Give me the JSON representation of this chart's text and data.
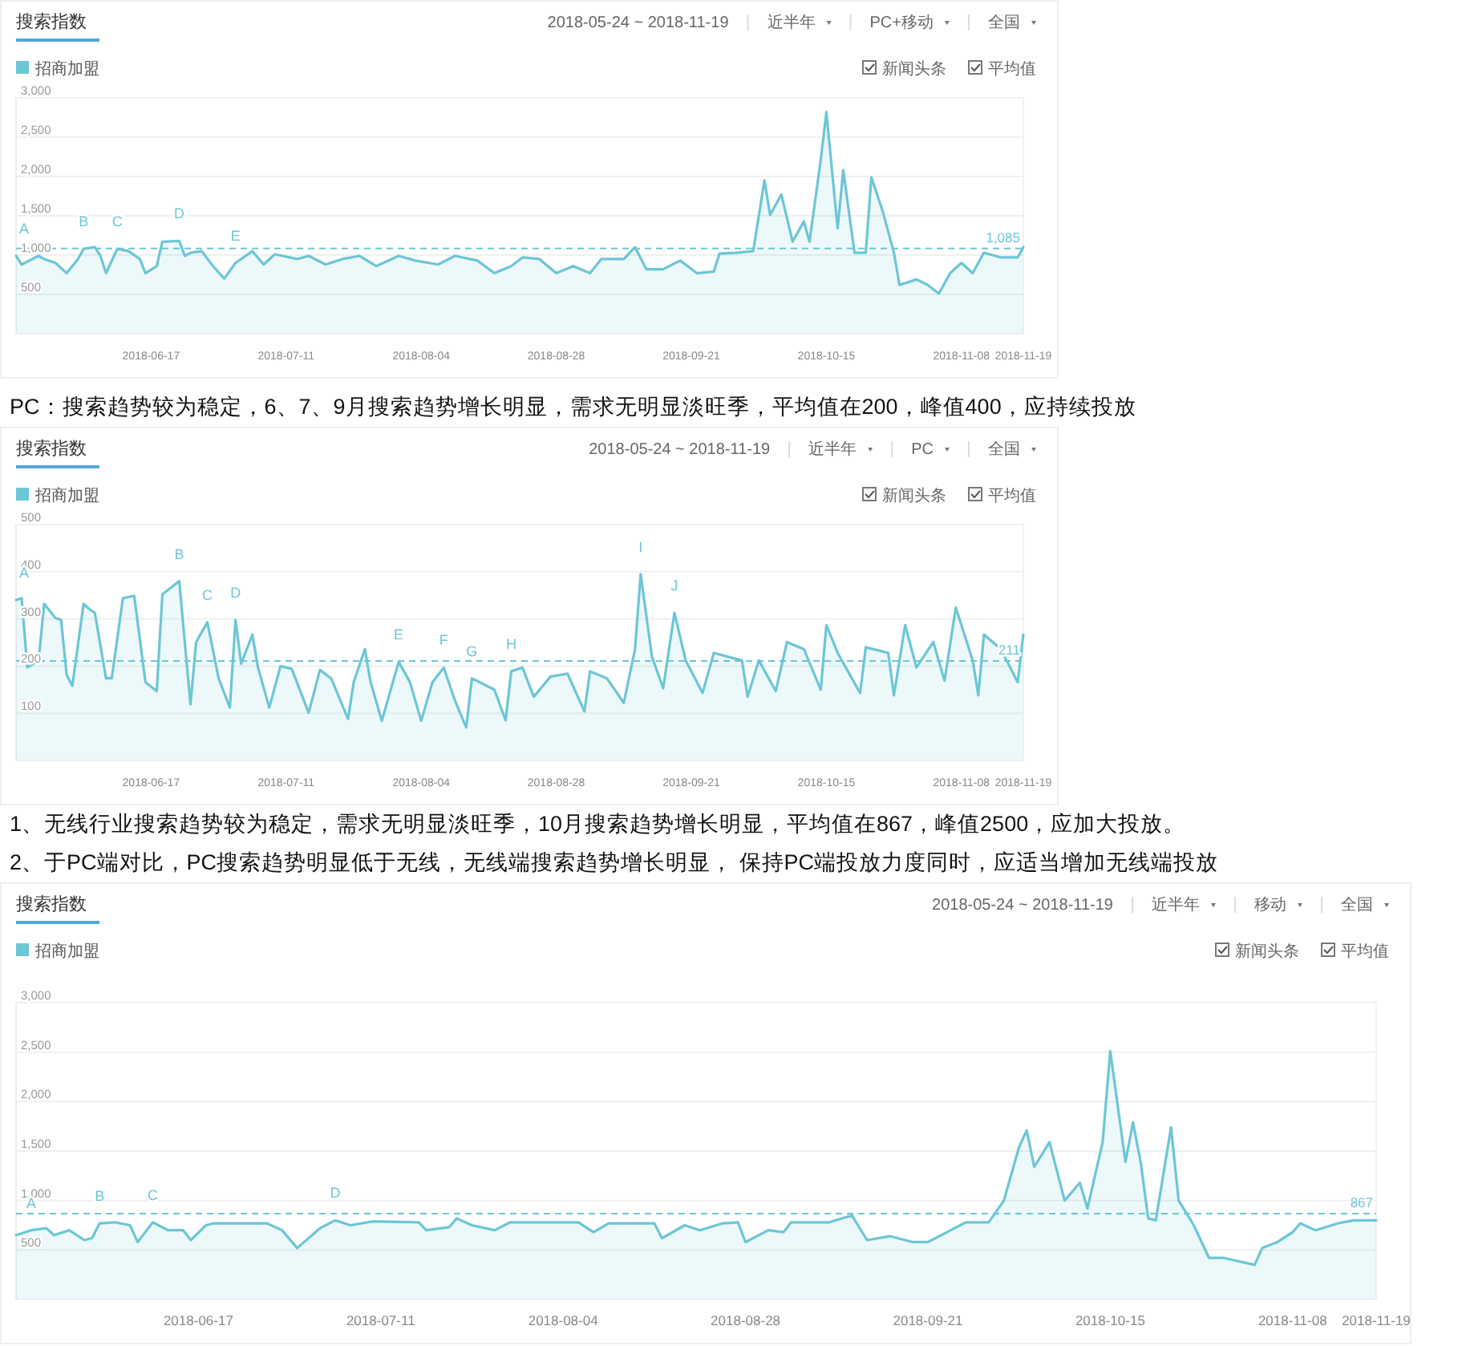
{
  "chart_data": [
    {
      "type": "area",
      "title": "搜索指数",
      "subtitle": "2018-05-24 ~ 2018-11-19",
      "legend": "top left",
      "grid": "y",
      "annotations": [
        "近半年",
        "PC+移动",
        "全国",
        "新闻头条",
        "平均值",
        {
          "text": "A",
          "x": "2018-05-24",
          "y": 990
        },
        {
          "text": "B",
          "x": "2018-06-05",
          "y": 1080
        },
        {
          "text": "C",
          "x": "2018-06-11",
          "y": 1080
        },
        {
          "text": "D",
          "x": "2018-06-22",
          "y": 1180
        },
        {
          "text": "E",
          "x": "2018-07-02",
          "y": 900
        }
      ],
      "xlim": [
        "2018-05-24",
        "2018-11-19"
      ],
      "xticks": [
        "2018-06-17",
        "2018-07-11",
        "2018-08-04",
        "2018-08-28",
        "2018-09-21",
        "2018-10-15",
        "2018-11-08",
        "2018-11-19"
      ],
      "ylim": [
        0,
        3000
      ],
      "yticks": [
        {
          "value": 500,
          "label": "500"
        },
        {
          "value": 1000,
          "label": "1,000"
        },
        {
          "value": 1500,
          "label": "1,500"
        },
        {
          "value": 2000,
          "label": "2,000"
        },
        {
          "value": 2500,
          "label": "2,500"
        },
        {
          "value": 3000,
          "label": "3,000"
        }
      ],
      "ref_lines": [
        {
          "axis": "y",
          "value": 1085,
          "label": "1,085",
          "color": "#6cc6d6",
          "line_style": "dashed"
        }
      ],
      "series": [
        {
          "name": "招商加盟",
          "color": "#6cc6d6",
          "x": [
            "2018-05-24",
            "2018-05-25",
            "2018-05-28",
            "2018-05-29",
            "2018-05-31",
            "2018-06-02",
            "2018-06-04",
            "2018-06-05",
            "2018-06-07",
            "2018-06-08",
            "2018-06-09",
            "2018-06-11",
            "2018-06-13",
            "2018-06-15",
            "2018-06-16",
            "2018-06-18",
            "2018-06-19",
            "2018-06-22",
            "2018-06-23",
            "2018-06-24",
            "2018-06-26",
            "2018-06-28",
            "2018-06-30",
            "2018-07-02",
            "2018-07-05",
            "2018-07-07",
            "2018-07-09",
            "2018-07-13",
            "2018-07-15",
            "2018-07-18",
            "2018-07-21",
            "2018-07-24",
            "2018-07-27",
            "2018-07-31",
            "2018-08-03",
            "2018-08-07",
            "2018-08-10",
            "2018-08-14",
            "2018-08-17",
            "2018-08-20",
            "2018-08-22",
            "2018-08-25",
            "2018-08-28",
            "2018-08-31",
            "2018-09-03",
            "2018-09-05",
            "2018-09-09",
            "2018-09-11",
            "2018-09-13",
            "2018-09-16",
            "2018-09-19",
            "2018-09-22",
            "2018-09-25",
            "2018-09-26",
            "2018-09-29",
            "2018-10-02",
            "2018-10-04",
            "2018-10-05",
            "2018-10-07",
            "2018-10-09",
            "2018-10-11",
            "2018-10-12",
            "2018-10-14",
            "2018-10-15",
            "2018-10-17",
            "2018-10-18",
            "2018-10-20",
            "2018-10-22",
            "2018-10-23",
            "2018-10-25",
            "2018-10-27",
            "2018-10-28",
            "2018-10-31",
            "2018-11-02",
            "2018-11-04",
            "2018-11-06",
            "2018-11-08",
            "2018-11-10",
            "2018-11-12",
            "2018-11-15",
            "2018-11-18",
            "2018-11-19"
          ],
          "values": [
            990,
            880,
            990,
            950,
            900,
            770,
            950,
            1080,
            1100,
            990,
            770,
            1080,
            1050,
            950,
            770,
            860,
            1170,
            1180,
            990,
            1030,
            1050,
            860,
            700,
            900,
            1050,
            880,
            1010,
            950,
            990,
            880,
            950,
            990,
            860,
            990,
            930,
            880,
            990,
            930,
            770,
            860,
            970,
            950,
            770,
            860,
            770,
            950,
            950,
            1100,
            820,
            820,
            930,
            770,
            790,
            1020,
            1030,
            1050,
            1950,
            1510,
            1770,
            1170,
            1430,
            1170,
            2210,
            2820,
            1340,
            2080,
            1030,
            1030,
            1990,
            1560,
            1030,
            620,
            690,
            620,
            510,
            770,
            900,
            770,
            1030,
            970,
            970,
            1100
          ]
        }
      ]
    },
    {
      "type": "area",
      "title": "搜索指数",
      "subtitle": "2018-05-24 ~ 2018-11-19",
      "legend": "top left",
      "grid": "y",
      "annotations": [
        "近半年",
        "PC",
        "全国",
        "新闻头条",
        "平均值",
        "PC：搜索趋势较为稳定，6、7、9月搜索趋势增长明显，需求无明显淡旺季，平均值在200，峰值400，应持续投放",
        {
          "text": "A",
          "x": "2018-05-24",
          "y": 340
        },
        {
          "text": "B",
          "x": "2018-06-22",
          "y": 380
        },
        {
          "text": "C",
          "x": "2018-06-27",
          "y": 293
        },
        {
          "text": "D",
          "x": "2018-07-02",
          "y": 298
        },
        {
          "text": "E",
          "x": "2018-07-31",
          "y": 209
        },
        {
          "text": "F",
          "x": "2018-08-08",
          "y": 197
        },
        {
          "text": "G",
          "x": "2018-08-13",
          "y": 174
        },
        {
          "text": "H",
          "x": "2018-08-20",
          "y": 189
        },
        {
          "text": "I",
          "x": "2018-09-12",
          "y": 395
        },
        {
          "text": "J",
          "x": "2018-09-18",
          "y": 313
        }
      ],
      "xlim": [
        "2018-05-24",
        "2018-11-19"
      ],
      "xticks": [
        "2018-06-17",
        "2018-07-11",
        "2018-08-04",
        "2018-08-28",
        "2018-09-21",
        "2018-10-15",
        "2018-11-08",
        "2018-11-19"
      ],
      "ylim": [
        0,
        500
      ],
      "yticks": [
        100,
        200,
        300,
        400,
        500
      ],
      "ref_lines": [
        {
          "axis": "y",
          "value": 211,
          "label": "211",
          "color": "#6cc6d6",
          "line_style": "dashed"
        }
      ],
      "series": [
        {
          "name": "招商加盟",
          "color": "#6cc6d6",
          "x": [
            "2018-05-24",
            "2018-05-25",
            "2018-05-26",
            "2018-05-28",
            "2018-05-29",
            "2018-05-31",
            "2018-06-01",
            "2018-06-02",
            "2018-06-03",
            "2018-06-05",
            "2018-06-06",
            "2018-06-07",
            "2018-06-09",
            "2018-06-10",
            "2018-06-12",
            "2018-06-14",
            "2018-06-16",
            "2018-06-18",
            "2018-06-19",
            "2018-06-22",
            "2018-06-24",
            "2018-06-25",
            "2018-06-27",
            "2018-06-29",
            "2018-07-01",
            "2018-07-02",
            "2018-07-03",
            "2018-07-05",
            "2018-07-06",
            "2018-07-08",
            "2018-07-10",
            "2018-07-12",
            "2018-07-15",
            "2018-07-17",
            "2018-07-19",
            "2018-07-22",
            "2018-07-23",
            "2018-07-25",
            "2018-07-26",
            "2018-07-28",
            "2018-07-31",
            "2018-08-02",
            "2018-08-04",
            "2018-08-06",
            "2018-08-08",
            "2018-08-10",
            "2018-08-12",
            "2018-08-13",
            "2018-08-17",
            "2018-08-19",
            "2018-08-20",
            "2018-08-22",
            "2018-08-24",
            "2018-08-27",
            "2018-08-30",
            "2018-09-02",
            "2018-09-03",
            "2018-09-06",
            "2018-09-09",
            "2018-09-11",
            "2018-09-12",
            "2018-09-14",
            "2018-09-16",
            "2018-09-18",
            "2018-09-20",
            "2018-09-23",
            "2018-09-25",
            "2018-09-30",
            "2018-10-01",
            "2018-10-03",
            "2018-10-06",
            "2018-10-08",
            "2018-10-11",
            "2018-10-14",
            "2018-10-15",
            "2018-10-17",
            "2018-10-21",
            "2018-10-22",
            "2018-10-26",
            "2018-10-27",
            "2018-10-29",
            "2018-10-31",
            "2018-11-03",
            "2018-11-05",
            "2018-11-07",
            "2018-11-10",
            "2018-11-11",
            "2018-11-12",
            "2018-11-15",
            "2018-11-18",
            "2018-11-19"
          ],
          "values": [
            340,
            344,
            197,
            212,
            332,
            302,
            298,
            181,
            158,
            332,
            321,
            313,
            174,
            174,
            344,
            349,
            166,
            147,
            352,
            380,
            119,
            251,
            293,
            174,
            112,
            298,
            205,
            267,
            197,
            112,
            200,
            194,
            101,
            192,
            174,
            88,
            166,
            236,
            166,
            84,
            209,
            166,
            84,
            166,
            197,
            127,
            70,
            174,
            150,
            85,
            189,
            197,
            135,
            178,
            184,
            104,
            189,
            174,
            122,
            236,
            395,
            220,
            153,
            313,
            212,
            143,
            228,
            212,
            135,
            212,
            147,
            251,
            236,
            150,
            287,
            228,
            143,
            240,
            228,
            138,
            287,
            197,
            251,
            169,
            324,
            212,
            138,
            267,
            236,
            166,
            267
          ]
        }
      ]
    },
    {
      "type": "area",
      "title": "搜索指数",
      "subtitle": "2018-05-24 ~ 2018-11-19",
      "legend": "top left",
      "grid": "y",
      "annotations": [
        "近半年",
        "移动",
        "全国",
        "新闻头条",
        "平均值",
        "1、无线行业搜索趋势较为稳定，需求无明显淡旺季，10月搜索趋势增长明显，平均值在867，峰值2500，应加大投放。",
        "2、于PC端对比，PC搜索趋势明显低于无线，无线端搜索趋势增长明显， 保持PC端投放力度同时，应适当增加无线端投放",
        {
          "text": "A",
          "x": "2018-05-26",
          "y": 700
        },
        {
          "text": "B",
          "x": "2018-06-04",
          "y": 770
        },
        {
          "text": "C",
          "x": "2018-06-11",
          "y": 780
        },
        {
          "text": "D",
          "x": "2018-07-05",
          "y": 800
        }
      ],
      "xlim": [
        "2018-05-24",
        "2018-11-19"
      ],
      "xticks": [
        "2018-06-17",
        "2018-07-11",
        "2018-08-04",
        "2018-08-28",
        "2018-09-21",
        "2018-10-15",
        "2018-11-08",
        "2018-11-19"
      ],
      "ylim": [
        0,
        3000
      ],
      "yticks": [
        {
          "value": 500,
          "label": "500"
        },
        {
          "value": 1000,
          "label": "1,000"
        },
        {
          "value": 1500,
          "label": "1,500"
        },
        {
          "value": 2000,
          "label": "2,000"
        },
        {
          "value": 2500,
          "label": "2,500"
        },
        {
          "value": 3000,
          "label": "3,000"
        }
      ],
      "ref_lines": [
        {
          "axis": "y",
          "value": 867,
          "label": "867",
          "color": "#6cc6d6",
          "line_style": "dashed"
        }
      ],
      "series": [
        {
          "name": "招商加盟",
          "color": "#6cc6d6",
          "x": [
            "2018-05-24",
            "2018-05-26",
            "2018-05-28",
            "2018-05-29",
            "2018-05-31",
            "2018-06-02",
            "2018-06-03",
            "2018-06-04",
            "2018-06-06",
            "2018-06-08",
            "2018-06-09",
            "2018-06-11",
            "2018-06-13",
            "2018-06-15",
            "2018-06-16",
            "2018-06-18",
            "2018-06-19",
            "2018-06-26",
            "2018-06-28",
            "2018-06-30",
            "2018-07-03",
            "2018-07-05",
            "2018-07-07",
            "2018-07-10",
            "2018-07-16",
            "2018-07-17",
            "2018-07-20",
            "2018-07-21",
            "2018-07-23",
            "2018-07-26",
            "2018-07-28",
            "2018-08-06",
            "2018-08-08",
            "2018-08-10",
            "2018-08-16",
            "2018-08-17",
            "2018-08-20",
            "2018-08-22",
            "2018-08-25",
            "2018-08-27",
            "2018-08-28",
            "2018-08-31",
            "2018-09-02",
            "2018-09-03",
            "2018-09-08",
            "2018-09-11",
            "2018-09-13",
            "2018-09-16",
            "2018-09-19",
            "2018-09-21",
            "2018-09-24",
            "2018-09-26",
            "2018-09-29",
            "2018-10-01",
            "2018-10-03",
            "2018-10-04",
            "2018-10-05",
            "2018-10-07",
            "2018-10-09",
            "2018-10-11",
            "2018-10-12",
            "2018-10-14",
            "2018-10-15",
            "2018-10-17",
            "2018-10-18",
            "2018-10-19",
            "2018-10-20",
            "2018-10-21",
            "2018-10-23",
            "2018-10-24",
            "2018-10-26",
            "2018-10-28",
            "2018-10-30",
            "2018-11-03",
            "2018-11-04",
            "2018-11-06",
            "2018-11-08",
            "2018-11-09",
            "2018-11-11",
            "2018-11-14",
            "2018-11-16",
            "2018-11-19"
          ],
          "values": [
            650,
            700,
            720,
            650,
            700,
            600,
            620,
            770,
            780,
            750,
            580,
            780,
            700,
            700,
            600,
            750,
            770,
            770,
            700,
            520,
            720,
            800,
            750,
            790,
            780,
            700,
            730,
            820,
            750,
            700,
            780,
            780,
            680,
            770,
            770,
            620,
            750,
            700,
            770,
            780,
            580,
            700,
            680,
            780,
            780,
            850,
            600,
            640,
            580,
            580,
            700,
            780,
            780,
            1000,
            1540,
            1710,
            1340,
            1590,
            1000,
            1180,
            920,
            1590,
            2510,
            1390,
            1790,
            1390,
            820,
            800,
            1740,
            1000,
            750,
            420,
            420,
            350,
            520,
            580,
            680,
            770,
            700,
            770,
            800,
            800
          ]
        }
      ]
    }
  ]
}
